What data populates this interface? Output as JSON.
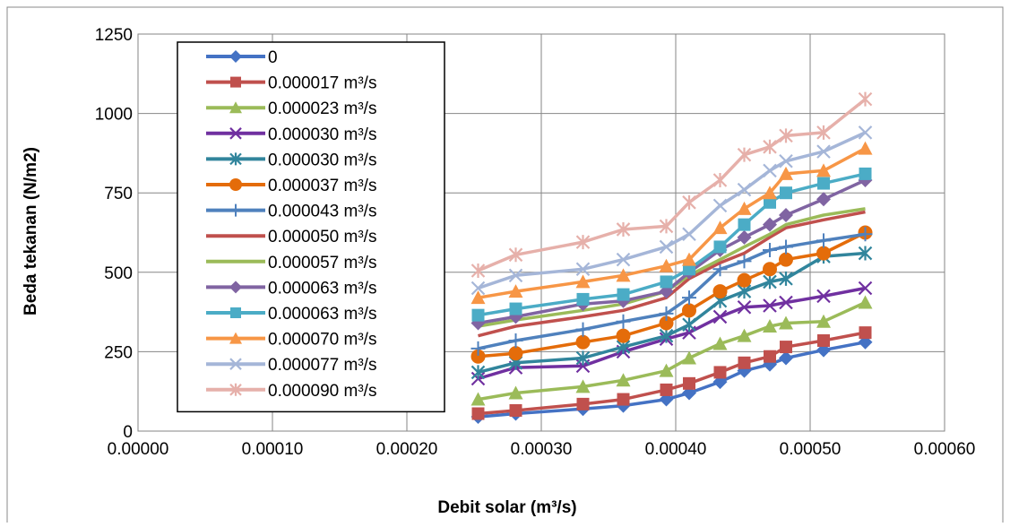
{
  "chart_data": {
    "type": "line",
    "xlabel": "Debit solar (m³/s)",
    "ylabel": "Beda tekanan (N/m2)",
    "xlim": [
      0,
      0.0006
    ],
    "ylim": [
      0,
      1250
    ],
    "xticks": [
      "0.00000",
      "0.00010",
      "0.00020",
      "0.00030",
      "0.00040",
      "0.00050",
      "0.00060"
    ],
    "yticks": [
      "0",
      "250",
      "500",
      "750",
      "1000",
      "1250"
    ],
    "grid": true,
    "legend_position": "top-left",
    "x": [
      0.000253,
      0.000281,
      0.000331,
      0.000361,
      0.000393,
      0.00041,
      0.000433,
      0.000451,
      0.00047,
      0.000482,
      0.00051,
      0.000541
    ],
    "series": [
      {
        "name": "0",
        "color": "#4472C4",
        "marker": "diamond",
        "values": [
          45,
          55,
          70,
          80,
          100,
          120,
          155,
          190,
          210,
          230,
          255,
          280
        ]
      },
      {
        "name": "0.000017 m³/s",
        "color": "#C0504D",
        "marker": "square",
        "values": [
          55,
          65,
          85,
          100,
          130,
          150,
          185,
          215,
          235,
          265,
          285,
          310
        ]
      },
      {
        "name": "0.000023 m³/s",
        "color": "#9BBB59",
        "marker": "triangle",
        "values": [
          100,
          120,
          140,
          160,
          190,
          230,
          275,
          300,
          330,
          340,
          345,
          405
        ]
      },
      {
        "name": "0.000030 m³/s",
        "color": "#7030A0",
        "marker": "x",
        "values": [
          165,
          200,
          205,
          250,
          290,
          310,
          360,
          390,
          395,
          405,
          425,
          450
        ]
      },
      {
        "name": "0.000030 m³/s",
        "color": "#31859C",
        "marker": "asterisk",
        "values": [
          185,
          215,
          230,
          265,
          300,
          335,
          410,
          440,
          470,
          480,
          550,
          560
        ]
      },
      {
        "name": "0.000037 m³/s",
        "color": "#E46C0A",
        "marker": "circle",
        "values": [
          235,
          245,
          280,
          300,
          340,
          380,
          440,
          475,
          510,
          540,
          560,
          625
        ]
      },
      {
        "name": "0.000043 m³/s",
        "color": "#4F81BD",
        "marker": "plus",
        "values": [
          260,
          285,
          320,
          345,
          370,
          420,
          510,
          535,
          570,
          580,
          600,
          620
        ]
      },
      {
        "name": "0.000050 m³/s",
        "color": "#C0504D",
        "marker": "none",
        "values": [
          300,
          330,
          360,
          380,
          420,
          480,
          530,
          560,
          610,
          640,
          665,
          690
        ]
      },
      {
        "name": "0.000057 m³/s",
        "color": "#9BBB59",
        "marker": "none",
        "values": [
          330,
          350,
          380,
          400,
          440,
          490,
          540,
          580,
          620,
          650,
          680,
          700
        ]
      },
      {
        "name": "0.000063 m³/s",
        "color": "#8064A2",
        "marker": "diamond",
        "values": [
          340,
          360,
          400,
          410,
          440,
          500,
          570,
          610,
          650,
          680,
          730,
          790
        ]
      },
      {
        "name": "0.000063 m³/s",
        "color": "#4BACC6",
        "marker": "square",
        "values": [
          365,
          385,
          415,
          430,
          470,
          510,
          580,
          650,
          720,
          750,
          780,
          810
        ]
      },
      {
        "name": "0.000070 m³/s",
        "color": "#F79646",
        "marker": "triangle",
        "values": [
          420,
          440,
          470,
          490,
          520,
          540,
          640,
          700,
          750,
          810,
          820,
          890
        ]
      },
      {
        "name": "0.000077 m³/s",
        "color": "#A5B6D8",
        "marker": "x",
        "values": [
          450,
          490,
          510,
          540,
          580,
          620,
          710,
          760,
          820,
          850,
          880,
          940
        ]
      },
      {
        "name": "0.000090 m³/s",
        "color": "#E6B0AA",
        "marker": "asterisk",
        "values": [
          505,
          555,
          595,
          635,
          645,
          720,
          790,
          870,
          895,
          930,
          940,
          1045
        ]
      }
    ]
  }
}
